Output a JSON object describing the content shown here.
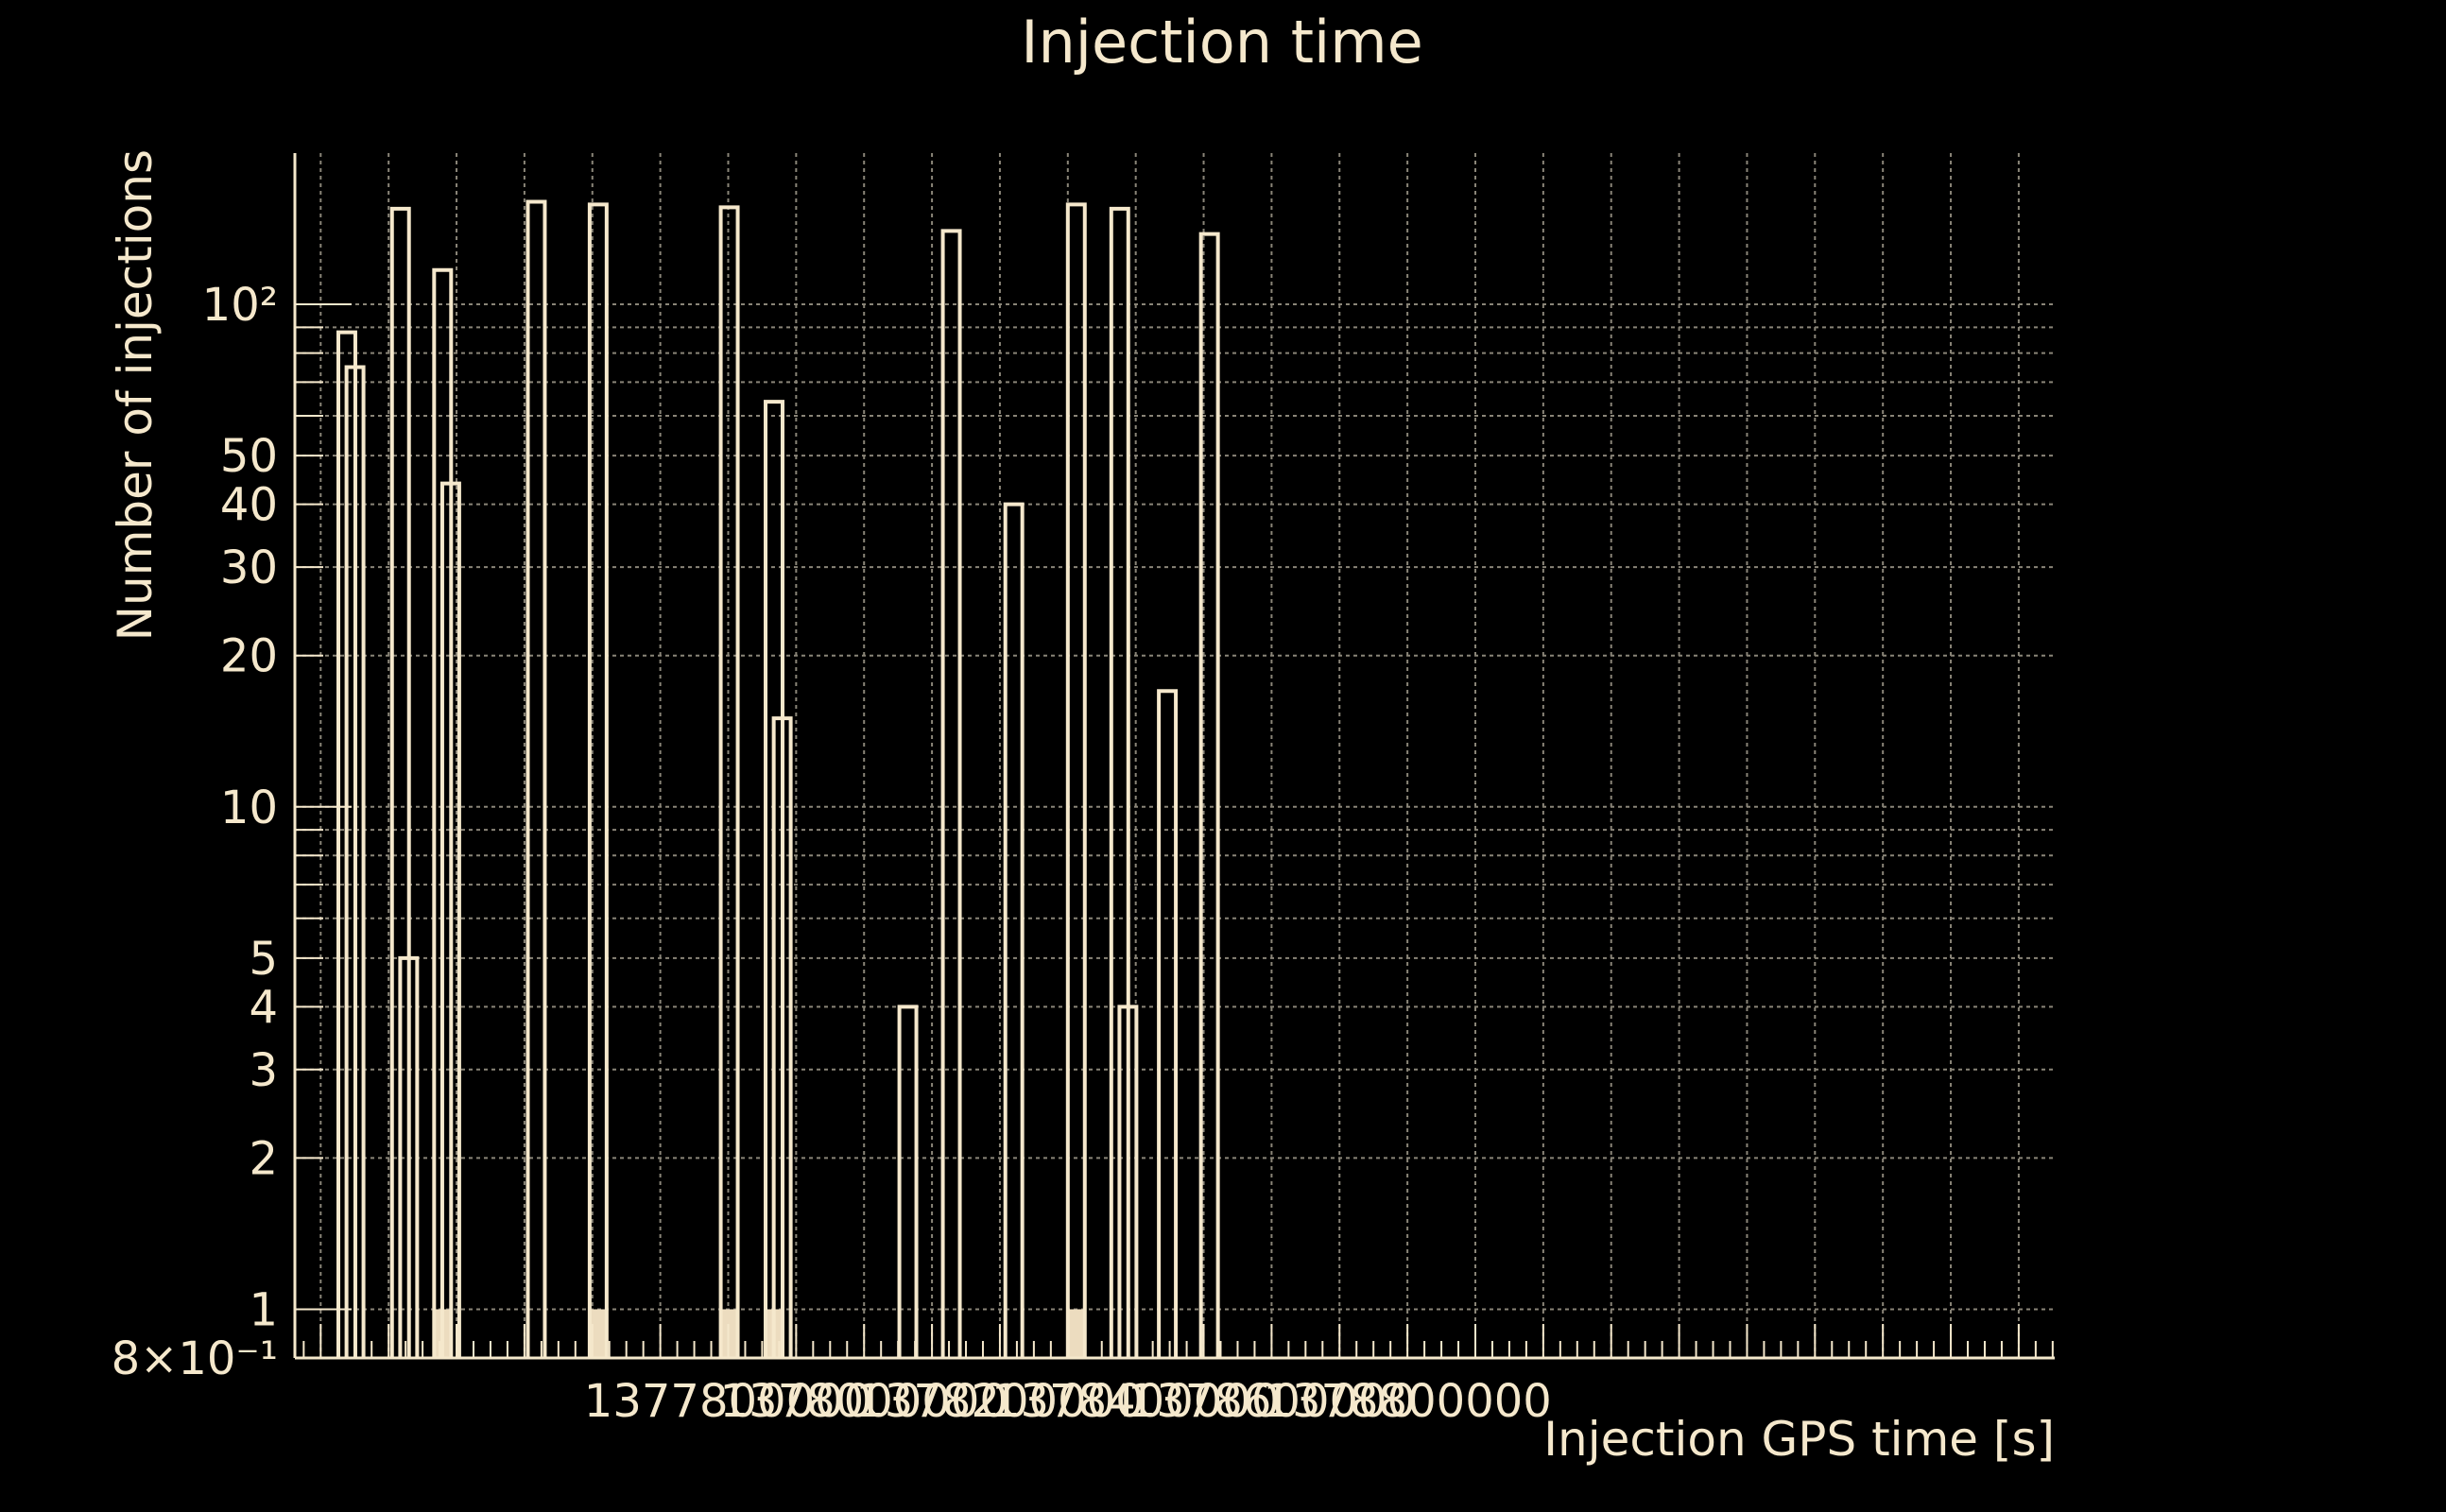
{
  "chart_data": {
    "type": "histogram",
    "title": "Injection time",
    "xlabel": "Injection GPS time [s]",
    "ylabel": "Number of injections",
    "y_scale": "log",
    "ylim": [
      0.8,
      200
    ],
    "xlim": [
      1377162000,
      1379753000
    ],
    "bin_width": 25000,
    "x_ticks": [
      {
        "value": 1377800000,
        "label": "1377800000"
      },
      {
        "value": 1378000000,
        "label": "1378000000"
      },
      {
        "value": 1378200000,
        "label": "1378200000"
      },
      {
        "value": 1378400000,
        "label": "1378400000"
      },
      {
        "value": 1378600000,
        "label": "1378600000"
      },
      {
        "value": 1378800000,
        "label": "1378800000"
      }
    ],
    "y_ticks": [
      {
        "value": 0.8,
        "label": "8×10⁻¹"
      },
      {
        "value": 1,
        "label": "1"
      },
      {
        "value": 2,
        "label": "2"
      },
      {
        "value": 3,
        "label": "3"
      },
      {
        "value": 4,
        "label": "4"
      },
      {
        "value": 5,
        "label": "5"
      },
      {
        "value": 10,
        "label": "10"
      },
      {
        "value": 20,
        "label": "20"
      },
      {
        "value": 30,
        "label": "30"
      },
      {
        "value": 40,
        "label": "40"
      },
      {
        "value": 50,
        "label": "50"
      },
      {
        "value": 100,
        "label": "10²"
      }
    ],
    "bins": [
      {
        "x": 1377226000,
        "value": 88
      },
      {
        "x": 1377238000,
        "value": 75
      },
      {
        "x": 1377305000,
        "value": 155
      },
      {
        "x": 1377317000,
        "value": 5
      },
      {
        "x": 1377367000,
        "value": 117
      },
      {
        "x": 1377379000,
        "value": 44
      },
      {
        "x": 1377505000,
        "value": 160
      },
      {
        "x": 1377596000,
        "value": 158
      },
      {
        "x": 1377789000,
        "value": 156
      },
      {
        "x": 1377855000,
        "value": 64
      },
      {
        "x": 1377867000,
        "value": 15
      },
      {
        "x": 1378052000,
        "value": 4
      },
      {
        "x": 1378116000,
        "value": 140
      },
      {
        "x": 1378208000,
        "value": 40
      },
      {
        "x": 1378300000,
        "value": 158
      },
      {
        "x": 1378364000,
        "value": 155
      },
      {
        "x": 1378376000,
        "value": 4
      },
      {
        "x": 1378434000,
        "value": 17
      },
      {
        "x": 1378496000,
        "value": 138
      }
    ],
    "filled_markers": [
      1377367000,
      1377596000,
      1377789000,
      1377855000,
      1378300000
    ],
    "grid": true,
    "colors": {
      "line": "#f5e8cc",
      "background": "#000000"
    }
  }
}
